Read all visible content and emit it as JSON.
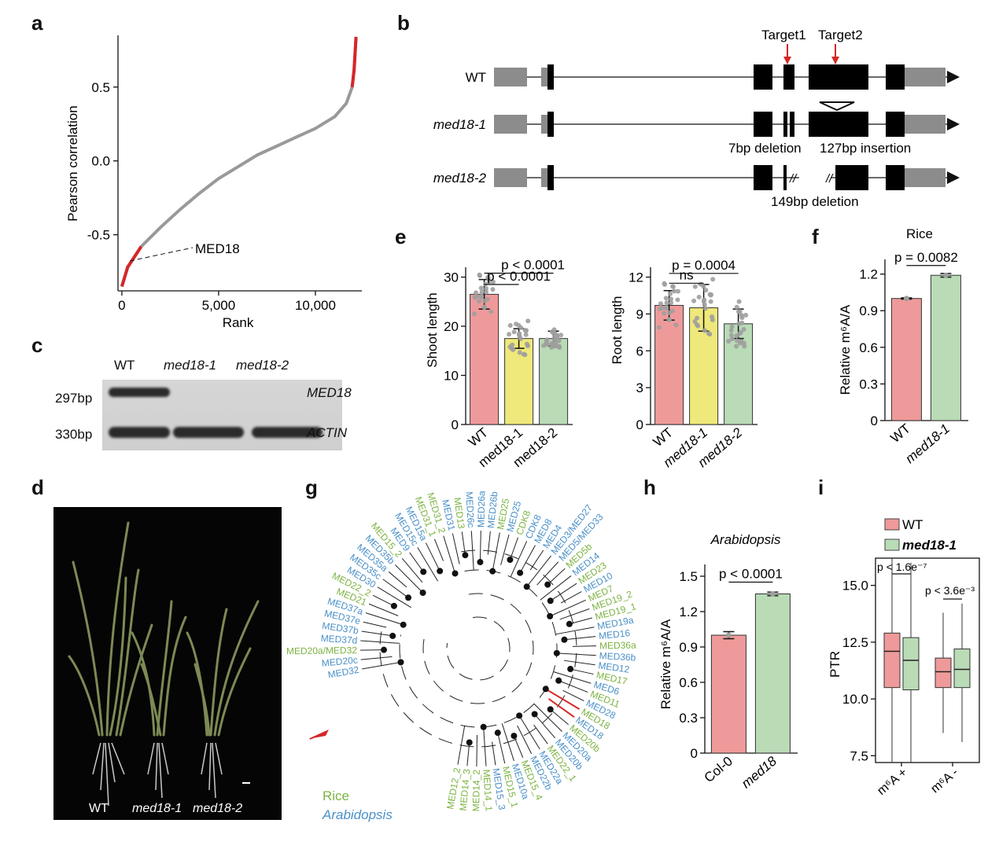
{
  "panels": {
    "a": "a",
    "b": "b",
    "c": "c",
    "d": "d",
    "e": "e",
    "f": "f",
    "g": "g",
    "h": "h",
    "i": "i"
  },
  "colors": {
    "wt": "#ef9a9a",
    "med18_1": "#efe87a",
    "med18_2": "#b9dbb6",
    "red": "#d62728",
    "gray": "#999999",
    "rice": "#7cb342",
    "arabidopsis": "#4a90c8"
  },
  "panel_a": {
    "ylabel": "Pearson correlation",
    "xlabel": "Rank",
    "annotation": "MED18",
    "yticks": [
      "0.5",
      "0.0",
      "-0.5"
    ],
    "xticks": [
      "0",
      "5,000",
      "10,000"
    ],
    "chart_data": {
      "type": "line",
      "title": "",
      "xlabel": "Rank",
      "ylabel": "Pearson correlation",
      "xlim": [
        -200,
        12400
      ],
      "ylim": [
        -0.88,
        0.85
      ],
      "x": [
        0,
        300,
        1000,
        2000,
        3000,
        4000,
        5000,
        6000,
        7000,
        8000,
        9000,
        10000,
        11000,
        11600,
        11900,
        12000,
        12100
      ],
      "y": [
        -0.85,
        -0.72,
        -0.58,
        -0.45,
        -0.33,
        -0.22,
        -0.12,
        -0.04,
        0.04,
        0.1,
        0.16,
        0.22,
        0.3,
        0.39,
        0.5,
        0.62,
        0.84
      ],
      "highlight": "MED18"
    }
  },
  "panel_b": {
    "rows": [
      "WT",
      "med18-1",
      "med18-2"
    ],
    "targets": [
      "Target1",
      "Target2"
    ],
    "notes": {
      "del7": "7bp deletion",
      "ins127": "127bp insertion",
      "del149": "149bp deletion"
    }
  },
  "panel_c": {
    "lanes": [
      "WT",
      "med18-1",
      "med18-2"
    ],
    "sizes": [
      "297bp",
      "330bp"
    ],
    "genes": [
      "MED18",
      "ACTIN"
    ]
  },
  "panel_d": {
    "labels": [
      "WT",
      "med18-1",
      "med18-2"
    ]
  },
  "panel_e": {
    "shoot": {
      "ylabel": "Shoot length",
      "yticks": [
        "0",
        "10",
        "20",
        "30"
      ],
      "categories": [
        "WT",
        "med18-1",
        "med18-2"
      ],
      "p1": "p < 0.0001",
      "p2": "p < 0.0001",
      "chart_data": {
        "type": "bar",
        "categories": [
          "WT",
          "med18-1",
          "med18-2"
        ],
        "values": [
          26.5,
          17.5,
          17.5
        ],
        "ylabel": "Shoot length",
        "ylim": [
          0,
          32
        ]
      }
    },
    "root": {
      "ylabel": "Root length",
      "yticks": [
        "0",
        "3",
        "6",
        "9",
        "12"
      ],
      "categories": [
        "WT",
        "med18-1",
        "med18-2"
      ],
      "p1": "p = 0.0004",
      "p2": "ns",
      "chart_data": {
        "type": "bar",
        "categories": [
          "WT",
          "med18-1",
          "med18-2"
        ],
        "values": [
          9.7,
          9.5,
          8.2
        ],
        "ylabel": "Root length",
        "ylim": [
          0,
          12.8
        ]
      }
    }
  },
  "panel_f": {
    "title": "Rice",
    "ylabel": "Relative m⁶A/A",
    "p": "p = 0.0082",
    "yticks": [
      "0",
      "0.3",
      "0.6",
      "0.9",
      "1.2"
    ],
    "categories": [
      "WT",
      "med18-1"
    ],
    "chart_data": {
      "type": "bar",
      "categories": [
        "WT",
        "med18-1"
      ],
      "values": [
        1.0,
        1.19
      ],
      "ylabel": "Relative m6A/A",
      "ylim": [
        0,
        1.32
      ]
    }
  },
  "panel_g": {
    "legend": {
      "rice": "Rice",
      "arabidopsis": "Arabidopsis"
    },
    "leaves": [
      {
        "l": "MED32",
        "s": "a"
      },
      {
        "l": "MED20c",
        "s": "a"
      },
      {
        "l": "MED20a/MED32",
        "s": "r"
      },
      {
        "l": "MED37d",
        "s": "a"
      },
      {
        "l": "MED37b",
        "s": "a"
      },
      {
        "l": "MED37e",
        "s": "a"
      },
      {
        "l": "MED37a",
        "s": "a"
      },
      {
        "l": "MED21",
        "s": "r"
      },
      {
        "l": "MED22_2",
        "s": "r"
      },
      {
        "l": "MED30",
        "s": "a"
      },
      {
        "l": "MED35c",
        "s": "a"
      },
      {
        "l": "MED35a",
        "s": "a"
      },
      {
        "l": "MED35b",
        "s": "a"
      },
      {
        "l": "MED15_2",
        "s": "r"
      },
      {
        "l": "MED9",
        "s": "a"
      },
      {
        "l": "MED15c",
        "s": "a"
      },
      {
        "l": "MED15a",
        "s": "a"
      },
      {
        "l": "MED31_1",
        "s": "r"
      },
      {
        "l": "MED31_2",
        "s": "r"
      },
      {
        "l": "MED31",
        "s": "a"
      },
      {
        "l": "MED13",
        "s": "r"
      },
      {
        "l": "MED26c",
        "s": "a"
      },
      {
        "l": "MED26a",
        "s": "a"
      },
      {
        "l": "MED26b",
        "s": "a"
      },
      {
        "l": "MED25",
        "s": "r"
      },
      {
        "l": "MED25",
        "s": "a"
      },
      {
        "l": "CDK8",
        "s": "r"
      },
      {
        "l": "CDK8",
        "s": "a"
      },
      {
        "l": "MED8",
        "s": "a"
      },
      {
        "l": "MED4",
        "s": "a"
      },
      {
        "l": "MED3/MED27",
        "s": "a"
      },
      {
        "l": "MED5/MED33",
        "s": "a"
      },
      {
        "l": "MED5b",
        "s": "r"
      },
      {
        "l": "MED14",
        "s": "a"
      },
      {
        "l": "MED23",
        "s": "r"
      },
      {
        "l": "MED10",
        "s": "a"
      },
      {
        "l": "MED7",
        "s": "r"
      },
      {
        "l": "MED19_2",
        "s": "r"
      },
      {
        "l": "MED19_1",
        "s": "r"
      },
      {
        "l": "MED19a",
        "s": "a"
      },
      {
        "l": "MED16",
        "s": "a"
      },
      {
        "l": "MED36a",
        "s": "r"
      },
      {
        "l": "MED36b",
        "s": "a"
      },
      {
        "l": "MED12",
        "s": "a"
      },
      {
        "l": "MED17",
        "s": "r"
      },
      {
        "l": "MED6",
        "s": "a"
      },
      {
        "l": "MED11",
        "s": "r"
      },
      {
        "l": "MED28",
        "s": "a"
      },
      {
        "l": "MED18",
        "s": "r"
      },
      {
        "l": "MED18",
        "s": "a"
      },
      {
        "l": "MED20b",
        "s": "r"
      },
      {
        "l": "MED20a",
        "s": "a"
      },
      {
        "l": "MED20b",
        "s": "a"
      },
      {
        "l": "MED22_1",
        "s": "r"
      },
      {
        "l": "MED22a",
        "s": "a"
      },
      {
        "l": "MED22b",
        "s": "a"
      },
      {
        "l": "MED15_4",
        "s": "r"
      },
      {
        "l": "MED10a",
        "s": "a"
      },
      {
        "l": "MED15_1",
        "s": "r"
      },
      {
        "l": "MED15_3",
        "s": "a"
      },
      {
        "l": "MED14_1",
        "s": "r"
      },
      {
        "l": "MED14_2",
        "s": "r"
      },
      {
        "l": "MED14_3",
        "s": "r"
      },
      {
        "l": "MED12_2",
        "s": "r"
      }
    ]
  },
  "panel_h": {
    "title": "Arabidopsis",
    "ylabel": "Relative m⁶A/A",
    "p": "p < 0.0001",
    "yticks": [
      "0",
      "0.3",
      "0.6",
      "0.9",
      "1.2",
      "1.5"
    ],
    "categories": [
      "Col-0",
      "med18"
    ],
    "chart_data": {
      "type": "bar",
      "categories": [
        "Col-0",
        "med18"
      ],
      "values": [
        1.0,
        1.35
      ],
      "ylabel": "Relative m6A/A",
      "ylim": [
        0,
        1.6
      ]
    }
  },
  "panel_i": {
    "ylabel": "PTR",
    "legend": [
      "WT",
      "med18-1"
    ],
    "yticks": [
      "7.5",
      "10.0",
      "12.5",
      "15.0"
    ],
    "xticks": [
      "m⁶A +",
      "m⁶A -"
    ],
    "p1": "p < 1.6e⁻⁷",
    "p2": "p < 3.6e⁻³",
    "chart_data": {
      "type": "box",
      "categories": [
        "m6A +",
        "m6A -"
      ],
      "ylim": [
        7.2,
        16.2
      ],
      "series": [
        {
          "name": "WT",
          "boxes": [
            {
              "min": 7.0,
              "q1": 10.5,
              "median": 12.1,
              "q3": 12.9,
              "max": 16.2
            },
            {
              "min": 8.5,
              "q1": 10.5,
              "median": 11.2,
              "q3": 11.8,
              "max": 13.8
            }
          ]
        },
        {
          "name": "med18-1",
          "boxes": [
            {
              "min": 7.0,
              "q1": 10.4,
              "median": 11.7,
              "q3": 12.7,
              "max": 16.0
            },
            {
              "min": 8.1,
              "q1": 10.5,
              "median": 11.3,
              "q3": 12.2,
              "max": 14.2
            }
          ]
        }
      ]
    }
  }
}
